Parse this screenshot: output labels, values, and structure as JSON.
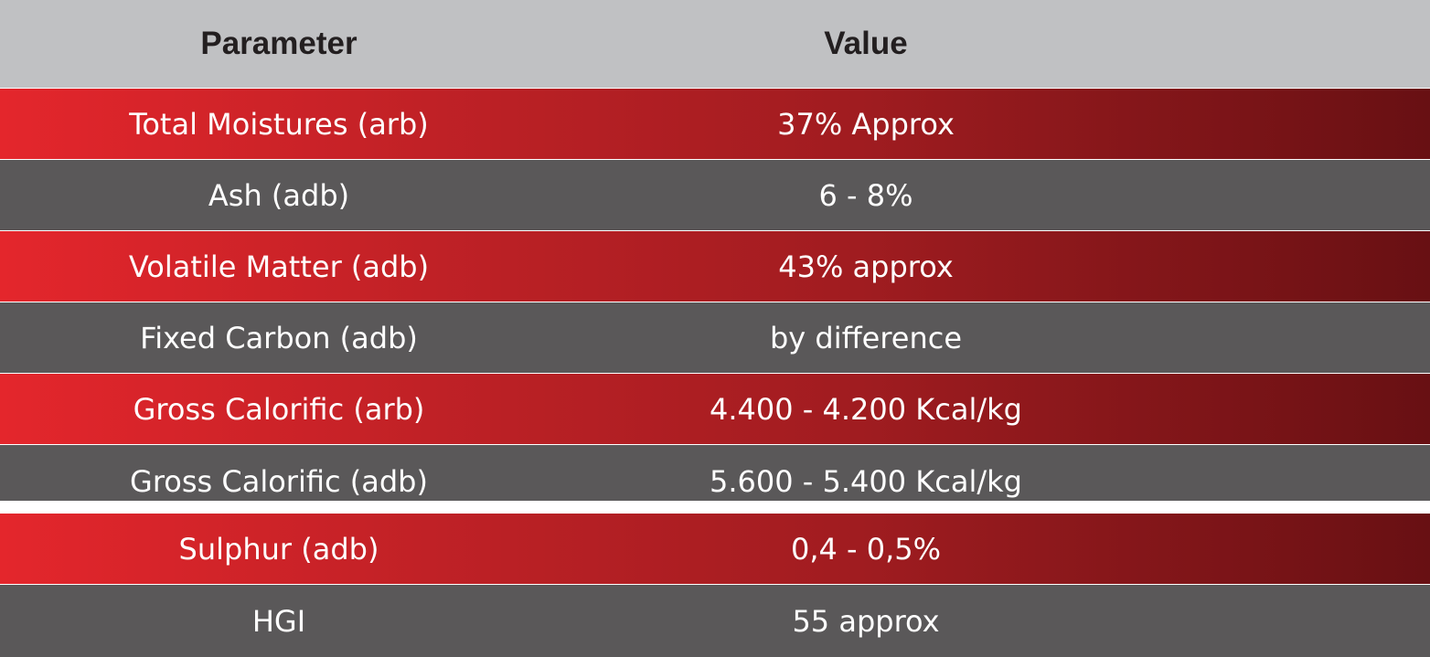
{
  "table": {
    "header": {
      "parameter": "Parameter",
      "value": "Value"
    },
    "rows": [
      {
        "parameter": "Total Moistures (arb)",
        "value": "37%  Approx",
        "style": "red"
      },
      {
        "parameter": "Ash (adb)",
        "value": "6 - 8%",
        "style": "grey"
      },
      {
        "parameter": "Volatile Matter (adb)",
        "value": "43% approx",
        "style": "red"
      },
      {
        "parameter": "Fixed Carbon (adb)",
        "value": "by difference",
        "style": "grey"
      },
      {
        "parameter": "Gross Calorific (arb)",
        "value": "4.400 - 4.200 Kcal/kg",
        "style": "red"
      },
      {
        "parameter": "Gross Calorific (adb)",
        "value": "5.600 - 5.400 Kcal/kg",
        "style": "grey"
      },
      {
        "parameter": "Sulphur (adb)",
        "value": "0,4 - 0,5%",
        "style": "red"
      },
      {
        "parameter": "HGI",
        "value": "55 approx",
        "style": "grey"
      }
    ]
  },
  "colors": {
    "header_bg": "#c0c1c3",
    "header_text": "#231f20",
    "red_start": "#e4262c",
    "red_end": "#681013",
    "grey_bg": "#5a5859",
    "row_text": "#ffffff"
  }
}
